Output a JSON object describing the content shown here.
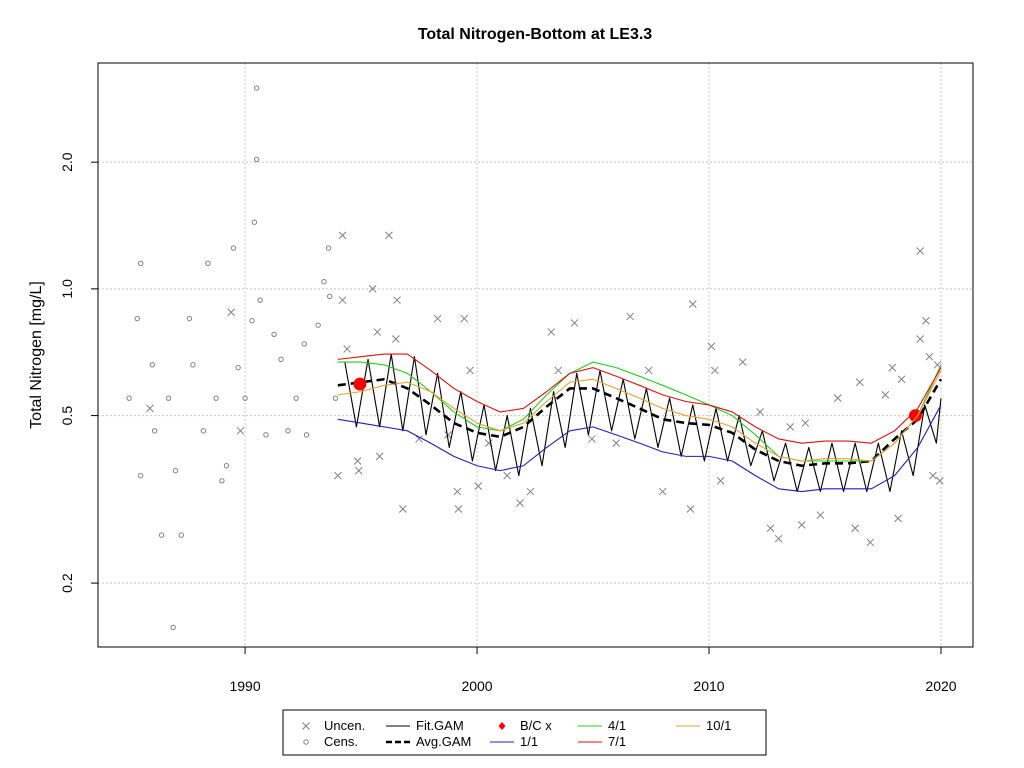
{
  "chart_data": {
    "type": "line",
    "title": "Total Nitrogen-Bottom at LE3.3",
    "ylabel": "Total Nitrogen [mg/L]",
    "xlim": [
      1983.66,
      2021.38
    ],
    "ylim": [
      0.141,
      3.44
    ],
    "xticks": [
      1990,
      2000,
      2010,
      2020
    ],
    "yticks": [
      0.2,
      0.5,
      {
        "value": 1,
        "label": "1.0"
      },
      {
        "value": 2,
        "label": "2.0"
      }
    ],
    "log_y": true,
    "grid": true,
    "series": [
      {
        "name": "Uncen.",
        "color": "#808080",
        "marker": "x",
        "x": [
          1985.9,
          1989.4,
          1989.8,
          1994.2,
          1994.2,
          1994.4,
          1994.0,
          1994.9,
          1994.85,
          1995.5,
          1995.7,
          1996.2,
          1996.55,
          1996.8,
          1995.8,
          1996.5,
          1997.5,
          1998.3,
          1998.75,
          1999.15,
          1999.45,
          1999.2,
          1999.7,
          2000.05,
          2000.5,
          2001.3,
          2001.85,
          2002.3,
          2003.2,
          2003.5,
          2004.2,
          2004.95,
          2006.0,
          2006.6,
          2007.4,
          2008.0,
          2009.2,
          2009.3,
          2010.1,
          2010.25,
          2010.5,
          2011.45,
          2012.2,
          2012.65,
          2013.0,
          2013.5,
          2014.0,
          2014.15,
          2014.8,
          2015.55,
          2016.3,
          2016.5,
          2016.95,
          2017.6,
          2017.9,
          2018.15,
          2018.3,
          2019.1,
          2019.1,
          2019.35,
          2019.5,
          2019.85,
          2019.65,
          2019.95
        ],
        "values": [
          0.52,
          0.88,
          0.46,
          1.34,
          0.94,
          0.72,
          0.36,
          0.37,
          0.39,
          1.0,
          0.79,
          1.34,
          0.94,
          0.3,
          0.4,
          0.76,
          0.44,
          0.85,
          0.45,
          0.33,
          0.85,
          0.3,
          0.64,
          0.34,
          0.43,
          0.36,
          0.31,
          0.33,
          0.79,
          0.64,
          0.83,
          0.44,
          0.43,
          0.86,
          0.64,
          0.33,
          0.3,
          0.92,
          0.73,
          0.64,
          0.35,
          0.67,
          0.51,
          0.27,
          0.255,
          0.47,
          0.275,
          0.48,
          0.29,
          0.55,
          0.27,
          0.6,
          0.25,
          0.56,
          0.65,
          0.285,
          0.61,
          1.23,
          0.76,
          0.84,
          0.69,
          0.66,
          0.36,
          0.35
        ]
      },
      {
        "name": "Cens.",
        "color": "#808080",
        "marker": "circle",
        "x": [
          1985.0,
          1985.35,
          1985.5,
          1985.5,
          1986.0,
          1986.1,
          1986.4,
          1986.7,
          1986.9,
          1987.0,
          1987.25,
          1987.6,
          1987.75,
          1988.2,
          1988.4,
          1988.75,
          1989.0,
          1989.2,
          1989.5,
          1989.7,
          1990.0,
          1990.3,
          1990.4,
          1990.5,
          1990.5,
          1990.65,
          1990.9,
          1991.25,
          1991.55,
          1991.85,
          1992.2,
          1992.55,
          1992.65,
          1993.15,
          1993.4,
          1993.6,
          1993.65,
          1993.9
        ],
        "values": [
          0.55,
          0.85,
          1.15,
          0.36,
          0.66,
          0.46,
          0.26,
          0.55,
          0.157,
          0.37,
          0.26,
          0.85,
          0.66,
          0.46,
          1.15,
          0.55,
          0.35,
          0.38,
          1.25,
          0.65,
          0.55,
          0.84,
          1.44,
          2.03,
          3.0,
          0.94,
          0.45,
          0.78,
          0.68,
          0.46,
          0.55,
          0.74,
          0.45,
          0.82,
          1.04,
          1.25,
          0.96,
          0.55
        ]
      },
      {
        "name": "Fit.GAM",
        "color": "#000000",
        "line": "solid",
        "x": [
          1994.3,
          1994.8,
          1995.3,
          1995.8,
          1996.3,
          1996.8,
          1997.3,
          1997.8,
          1998.3,
          1998.8,
          1999.3,
          1999.8,
          2000.3,
          2000.8,
          2001.3,
          2001.8,
          2002.3,
          2002.8,
          2003.3,
          2003.8,
          2004.3,
          2004.8,
          2005.3,
          2005.8,
          2006.3,
          2006.8,
          2007.3,
          2007.8,
          2008.3,
          2008.8,
          2009.3,
          2009.8,
          2010.3,
          2010.8,
          2011.3,
          2011.8,
          2012.3,
          2012.8,
          2013.3,
          2013.8,
          2014.3,
          2014.8,
          2015.3,
          2015.8,
          2016.3,
          2016.8,
          2017.3,
          2017.8,
          2018.3,
          2018.8,
          2019.3,
          2019.8,
          2020.0
        ],
        "values": [
          0.67,
          0.47,
          0.68,
          0.47,
          0.7,
          0.46,
          0.69,
          0.45,
          0.63,
          0.42,
          0.57,
          0.39,
          0.53,
          0.37,
          0.5,
          0.36,
          0.52,
          0.38,
          0.57,
          0.42,
          0.63,
          0.45,
          0.64,
          0.46,
          0.61,
          0.44,
          0.58,
          0.42,
          0.55,
          0.4,
          0.53,
          0.39,
          0.52,
          0.39,
          0.5,
          0.38,
          0.46,
          0.35,
          0.43,
          0.33,
          0.42,
          0.33,
          0.43,
          0.33,
          0.43,
          0.33,
          0.43,
          0.33,
          0.46,
          0.36,
          0.53,
          0.43,
          0.55
        ]
      },
      {
        "name": "Avg.GAM",
        "color": "#000000",
        "line": "dashed",
        "x": [
          1994,
          1995,
          1996,
          1997,
          1998,
          1999,
          2000,
          2001,
          2002,
          2003,
          2004,
          2005,
          2006,
          2007,
          2008,
          2009,
          2010,
          2011,
          2012,
          2013,
          2014,
          2015,
          2016,
          2017,
          2018,
          2019,
          2020
        ],
        "values": [
          0.59,
          0.6,
          0.61,
          0.58,
          0.53,
          0.48,
          0.455,
          0.445,
          0.47,
          0.525,
          0.58,
          0.58,
          0.55,
          0.52,
          0.49,
          0.48,
          0.475,
          0.455,
          0.415,
          0.39,
          0.38,
          0.385,
          0.385,
          0.39,
          0.44,
          0.49,
          0.61
        ]
      },
      {
        "name": "B/C x",
        "color": "#ff0000",
        "marker": "dot",
        "x": [
          1994.95,
          2018.9
        ],
        "values": [
          0.594,
          0.5
        ]
      },
      {
        "name": "1/1",
        "color": "#1f1fb8",
        "line": "solid",
        "x": [
          1994,
          1995,
          1996,
          1997,
          1998,
          1999,
          2000,
          2001,
          2002,
          2003,
          2004,
          2005,
          2006,
          2007,
          2008,
          2009,
          2010,
          2011,
          2012,
          2013,
          2014,
          2015,
          2016,
          2017,
          2018,
          2019,
          2020
        ],
        "values": [
          0.49,
          0.48,
          0.47,
          0.46,
          0.43,
          0.4,
          0.38,
          0.37,
          0.38,
          0.42,
          0.46,
          0.47,
          0.45,
          0.43,
          0.41,
          0.4,
          0.4,
          0.39,
          0.36,
          0.335,
          0.33,
          0.335,
          0.335,
          0.335,
          0.36,
          0.42,
          0.53
        ]
      },
      {
        "name": "4/1",
        "color": "#22cc22",
        "line": "solid",
        "x": [
          1994,
          1995,
          1996,
          1997,
          1998,
          1999,
          2000,
          2001,
          2002,
          2003,
          2004,
          2005,
          2006,
          2007,
          2008,
          2009,
          2010,
          2011,
          2012,
          2013,
          2014,
          2015,
          2016,
          2017,
          2018,
          2019,
          2020
        ],
        "values": [
          0.67,
          0.67,
          0.66,
          0.63,
          0.57,
          0.51,
          0.47,
          0.46,
          0.49,
          0.56,
          0.63,
          0.67,
          0.65,
          0.62,
          0.59,
          0.56,
          0.53,
          0.5,
          0.45,
          0.4,
          0.39,
          0.39,
          0.39,
          0.39,
          0.43,
          0.5,
          0.66
        ]
      },
      {
        "name": "7/1",
        "color": "#dd1111",
        "line": "solid",
        "x": [
          1994,
          1995,
          1996,
          1997,
          1998,
          1999,
          2000,
          2001,
          2002,
          2003,
          2004,
          2005,
          2006,
          2007,
          2008,
          2009,
          2010,
          2011,
          2012,
          2013,
          2014,
          2015,
          2016,
          2017,
          2018,
          2019,
          2020
        ],
        "values": [
          0.68,
          0.69,
          0.7,
          0.7,
          0.64,
          0.58,
          0.54,
          0.51,
          0.52,
          0.57,
          0.63,
          0.65,
          0.62,
          0.59,
          0.56,
          0.54,
          0.53,
          0.51,
          0.47,
          0.44,
          0.43,
          0.435,
          0.435,
          0.43,
          0.46,
          0.52,
          0.65
        ]
      },
      {
        "name": "10/1",
        "color": "#e8a030",
        "line": "solid",
        "x": [
          1994,
          1995,
          1996,
          1997,
          1998,
          1999,
          2000,
          2001,
          2002,
          2003,
          2004,
          2005,
          2006,
          2007,
          2008,
          2009,
          2010,
          2011,
          2012,
          2013,
          2014,
          2015,
          2016,
          2017,
          2018,
          2019,
          2020
        ],
        "values": [
          0.56,
          0.57,
          0.59,
          0.6,
          0.57,
          0.52,
          0.48,
          0.46,
          0.48,
          0.54,
          0.6,
          0.61,
          0.58,
          0.55,
          0.52,
          0.5,
          0.49,
          0.47,
          0.43,
          0.4,
          0.39,
          0.395,
          0.395,
          0.39,
          0.43,
          0.5,
          0.64
        ]
      }
    ]
  }
}
